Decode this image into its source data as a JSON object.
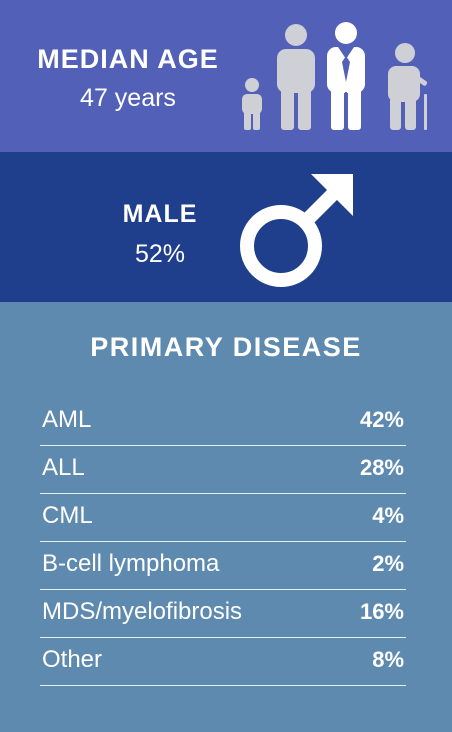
{
  "median_age": {
    "title": "MEDIAN AGE",
    "value": "47 years",
    "icon": "age-group-people-icon"
  },
  "male": {
    "title": "MALE",
    "value": "52%",
    "icon": "male-symbol-icon"
  },
  "primary_disease": {
    "title": "PRIMARY DISEASE",
    "rows": [
      {
        "name": "AML",
        "pct": "42%"
      },
      {
        "name": "ALL",
        "pct": "28%"
      },
      {
        "name": "CML",
        "pct": "4%"
      },
      {
        "name": "B-cell lymphoma",
        "pct": "2%"
      },
      {
        "name": "MDS/myelofibrosis",
        "pct": "16%"
      },
      {
        "name": "Other",
        "pct": "8%"
      }
    ]
  },
  "colors": {
    "age_bg": "#5260B8",
    "male_bg": "#1F3E8B",
    "disease_bg": "#5F8AAF",
    "icon_gray": "#CFCFD6"
  }
}
